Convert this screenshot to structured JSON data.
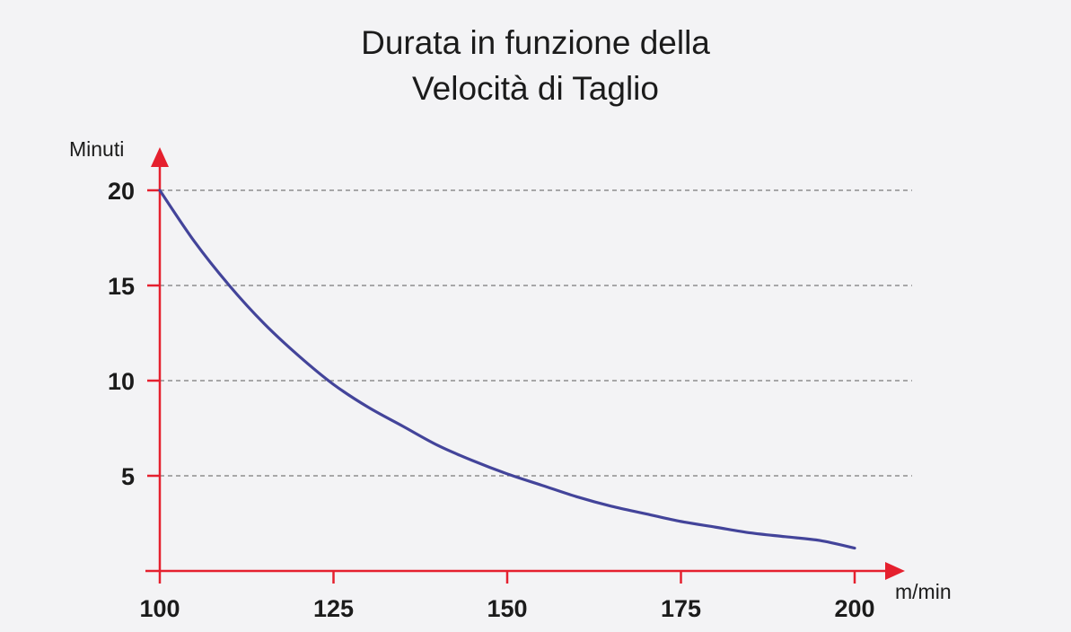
{
  "chart_data": {
    "type": "line",
    "title_lines": [
      "Durata in funzione della",
      "Velocità di Taglio"
    ],
    "xlabel": "m/min",
    "ylabel": "Minuti",
    "xlim": [
      100,
      200
    ],
    "ylim": [
      0,
      20
    ],
    "x_ticks": [
      100,
      125,
      150,
      175,
      200
    ],
    "y_ticks": [
      5,
      10,
      15,
      20
    ],
    "grid": "horizontal dashed",
    "series": [
      {
        "x": [
          100,
          105,
          110,
          115,
          120,
          125,
          130,
          135,
          140,
          145,
          150,
          155,
          160,
          165,
          170,
          175,
          180,
          185,
          190,
          195,
          200
        ],
        "y": [
          20,
          17.3,
          15,
          13,
          11.3,
          9.8,
          8.6,
          7.6,
          6.6,
          5.8,
          5.1,
          4.5,
          3.9,
          3.4,
          3.0,
          2.6,
          2.3,
          2.0,
          1.8,
          1.6,
          1.2
        ]
      }
    ],
    "colors": {
      "axis": "#e5202e",
      "curve": "#43449a",
      "grid": "#7a7a7a"
    }
  }
}
